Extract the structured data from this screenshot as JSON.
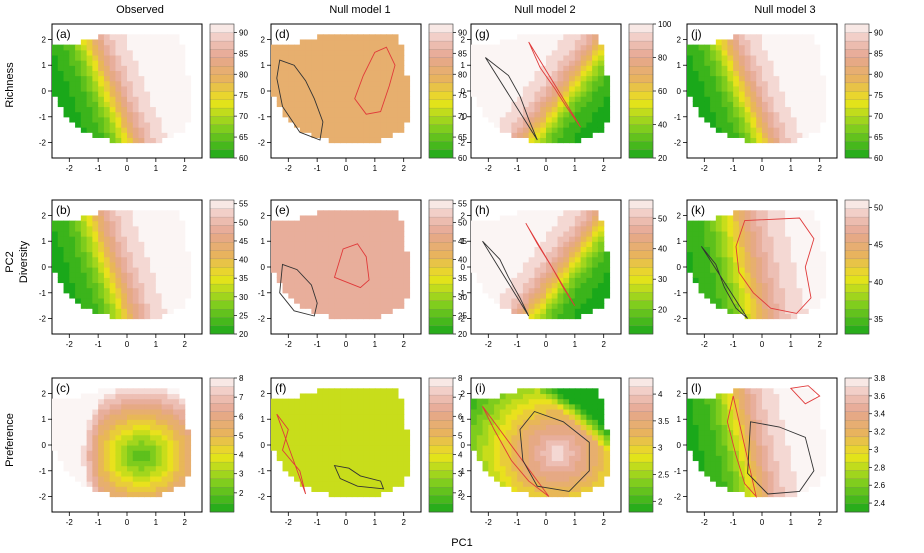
{
  "figure": {
    "column_titles": [
      "Observed",
      "Null model 1",
      "Null model 2",
      "Null model 3"
    ],
    "row_titles": [
      "Richness",
      "Diversity",
      "Preference"
    ],
    "xlabel": "PC1",
    "ylabel": "PC2"
  },
  "chart_data": [
    {
      "panel": "(a)",
      "type": "heatmap",
      "row": "Richness",
      "column": "Observed",
      "x_ticks": [
        -2,
        -1,
        0,
        1,
        2
      ],
      "y_ticks": [
        -2,
        -1,
        0,
        1,
        2
      ],
      "xlim": [
        -2.6,
        2.6
      ],
      "ylim": [
        -2.6,
        2.6
      ],
      "colorbar": {
        "min": 60,
        "max": 92,
        "ticks": [
          60,
          65,
          70,
          75,
          80,
          85,
          90
        ]
      },
      "surface": {
        "direction": 0.35,
        "low": 60,
        "high": 92,
        "steep": 2.6
      },
      "contours": []
    },
    {
      "panel": "(d)",
      "type": "heatmap",
      "row": "Richness",
      "column": "Null model 1",
      "x_ticks": [
        -2,
        -1,
        0,
        1,
        2
      ],
      "y_ticks": [
        -2,
        -1,
        0,
        1,
        2
      ],
      "xlim": [
        -2.6,
        2.6
      ],
      "ylim": [
        -2.6,
        2.6
      ],
      "colorbar": {
        "min": 60,
        "max": 92,
        "ticks": [
          60,
          65,
          70,
          75,
          80,
          85,
          90
        ]
      },
      "surface": {
        "uniform": 80
      },
      "contours": [
        {
          "color": "black",
          "points": [
            [
              -2.3,
              1.2
            ],
            [
              -1.8,
              1.0
            ],
            [
              -1.4,
              0.4
            ],
            [
              -1.1,
              -0.3
            ],
            [
              -0.8,
              -1.2
            ],
            [
              -0.9,
              -1.9
            ],
            [
              -1.6,
              -1.6
            ],
            [
              -2.2,
              -0.6
            ],
            [
              -2.4,
              0.5
            ]
          ]
        },
        {
          "color": "red",
          "points": [
            [
              0.3,
              -0.3
            ],
            [
              0.6,
              0.6
            ],
            [
              1.0,
              1.5
            ],
            [
              1.4,
              1.7
            ],
            [
              1.7,
              1.0
            ],
            [
              1.5,
              0.2
            ],
            [
              1.2,
              -0.8
            ],
            [
              0.7,
              -0.9
            ]
          ]
        }
      ]
    },
    {
      "panel": "(g)",
      "type": "heatmap",
      "row": "Richness",
      "column": "Null model 2",
      "x_ticks": [
        -2,
        -1,
        0,
        1,
        2
      ],
      "y_ticks": [
        -2,
        -1,
        0,
        1,
        2
      ],
      "xlim": [
        -2.6,
        2.6
      ],
      "ylim": [
        -2.6,
        2.6
      ],
      "colorbar": {
        "min": 20,
        "max": 100,
        "ticks": [
          20,
          40,
          60,
          80,
          100
        ]
      },
      "surface": {
        "direction": -0.6,
        "low": 20,
        "high": 100,
        "steep": 2.6
      },
      "contours": [
        {
          "color": "black",
          "points": [
            [
              -2.1,
              1.3
            ],
            [
              -1.3,
              0.6
            ],
            [
              -0.9,
              -0.2
            ],
            [
              -0.6,
              -1.1
            ],
            [
              -0.3,
              -1.9
            ]
          ]
        },
        {
          "color": "red",
          "points": [
            [
              -0.6,
              1.9
            ],
            [
              -0.2,
              0.9
            ],
            [
              0.3,
              0.1
            ],
            [
              0.7,
              -0.6
            ],
            [
              1.2,
              -1.4
            ]
          ]
        }
      ]
    },
    {
      "panel": "(j)",
      "type": "heatmap",
      "row": "Richness",
      "column": "Null model 3",
      "x_ticks": [
        -2,
        -1,
        0,
        1,
        2
      ],
      "y_ticks": [
        -2,
        -1,
        0,
        1,
        2
      ],
      "xlim": [
        -2.6,
        2.6
      ],
      "ylim": [
        -2.6,
        2.6
      ],
      "colorbar": {
        "min": 60,
        "max": 92,
        "ticks": [
          60,
          65,
          70,
          75,
          80,
          85,
          90
        ]
      },
      "surface": {
        "direction": 0.35,
        "low": 60,
        "high": 92,
        "steep": 2.6
      },
      "contours": []
    },
    {
      "panel": "(b)",
      "type": "heatmap",
      "row": "Diversity",
      "column": "Observed",
      "x_ticks": [
        -2,
        -1,
        0,
        1,
        2
      ],
      "y_ticks": [
        -2,
        -1,
        0,
        1,
        2
      ],
      "xlim": [
        -2.6,
        2.6
      ],
      "ylim": [
        -2.6,
        2.6
      ],
      "colorbar": {
        "min": 20,
        "max": 56,
        "ticks": [
          20,
          25,
          30,
          35,
          40,
          45,
          50,
          55
        ]
      },
      "surface": {
        "direction": 0.3,
        "low": 20,
        "high": 56,
        "steep": 2.4
      },
      "contours": []
    },
    {
      "panel": "(e)",
      "type": "heatmap",
      "row": "Diversity",
      "column": "Null model 1",
      "x_ticks": [
        -2,
        -1,
        0,
        1,
        2
      ],
      "y_ticks": [
        -2,
        -1,
        0,
        1,
        2
      ],
      "xlim": [
        -2.6,
        2.6
      ],
      "ylim": [
        -2.6,
        2.6
      ],
      "colorbar": {
        "min": 20,
        "max": 56,
        "ticks": [
          20,
          25,
          30,
          35,
          40,
          45,
          50,
          55
        ]
      },
      "surface": {
        "uniform": 47
      },
      "contours": [
        {
          "color": "black",
          "points": [
            [
              -2.2,
              0.1
            ],
            [
              -1.7,
              -0.1
            ],
            [
              -1.2,
              -0.7
            ],
            [
              -1.0,
              -1.4
            ],
            [
              -1.1,
              -1.9
            ],
            [
              -1.8,
              -1.7
            ],
            [
              -2.3,
              -1.0
            ]
          ]
        },
        {
          "color": "red",
          "points": [
            [
              -0.4,
              -0.4
            ],
            [
              -0.1,
              0.7
            ],
            [
              0.4,
              0.9
            ],
            [
              0.7,
              0.4
            ],
            [
              0.8,
              -0.5
            ],
            [
              0.5,
              -0.8
            ]
          ]
        }
      ]
    },
    {
      "panel": "(h)",
      "type": "heatmap",
      "row": "Diversity",
      "column": "Null model 2",
      "x_ticks": [
        -2,
        -1,
        0,
        1,
        2
      ],
      "y_ticks": [
        -2,
        -1,
        0,
        1,
        2
      ],
      "xlim": [
        -2.6,
        2.6
      ],
      "ylim": [
        -2.6,
        2.6
      ],
      "colorbar": {
        "min": 12,
        "max": 56,
        "ticks": [
          20,
          30,
          40,
          50
        ]
      },
      "surface": {
        "direction": -0.6,
        "low": 12,
        "high": 56,
        "steep": 2.6
      },
      "contours": [
        {
          "color": "black",
          "points": [
            [
              -2.2,
              1.0
            ],
            [
              -1.6,
              0.3
            ],
            [
              -1.3,
              -0.4
            ],
            [
              -0.9,
              -1.2
            ],
            [
              -0.6,
              -1.9
            ]
          ]
        },
        {
          "color": "red",
          "points": [
            [
              -0.7,
              1.7
            ],
            [
              -0.3,
              0.9
            ],
            [
              0.2,
              0.0
            ],
            [
              0.6,
              -0.8
            ],
            [
              1.0,
              -1.5
            ]
          ]
        }
      ]
    },
    {
      "panel": "(k)",
      "type": "heatmap",
      "row": "Diversity",
      "column": "Null model 3",
      "x_ticks": [
        -2,
        -1,
        0,
        1,
        2
      ],
      "y_ticks": [
        -2,
        -1,
        0,
        1,
        2
      ],
      "xlim": [
        -2.6,
        2.6
      ],
      "ylim": [
        -2.6,
        2.6
      ],
      "colorbar": {
        "min": 33,
        "max": 51,
        "ticks": [
          35,
          40,
          45,
          50
        ]
      },
      "surface": {
        "direction": 0.2,
        "low": 33,
        "high": 51,
        "steep": 1.9
      },
      "contours": [
        {
          "color": "black",
          "points": [
            [
              -2.1,
              0.8
            ],
            [
              -1.6,
              0.1
            ],
            [
              -1.3,
              -0.8
            ],
            [
              -0.9,
              -1.6
            ],
            [
              -0.5,
              -2.0
            ]
          ]
        },
        {
          "color": "red",
          "points": [
            [
              -0.6,
              1.8
            ],
            [
              -0.9,
              0.8
            ],
            [
              -0.8,
              -0.2
            ],
            [
              -0.3,
              -1.0
            ],
            [
              0.3,
              -1.6
            ],
            [
              1.2,
              -1.8
            ],
            [
              1.7,
              -1.2
            ],
            [
              1.5,
              0.0
            ],
            [
              1.8,
              1.1
            ],
            [
              1.3,
              1.9
            ]
          ]
        }
      ]
    },
    {
      "panel": "(c)",
      "type": "heatmap",
      "row": "Preference",
      "column": "Observed",
      "x_ticks": [
        -2,
        -1,
        0,
        1,
        2
      ],
      "y_ticks": [
        -2,
        -1,
        0,
        1,
        2
      ],
      "xlim": [
        -2.6,
        2.6
      ],
      "ylim": [
        -2.6,
        2.6
      ],
      "colorbar": {
        "min": 1,
        "max": 8,
        "ticks": [
          2,
          3,
          4,
          5,
          6,
          7,
          8
        ]
      },
      "surface": {
        "direction": -0.4,
        "low": 1,
        "high": 8,
        "steep": 2.2,
        "valley": true
      },
      "contours": []
    },
    {
      "panel": "(f)",
      "type": "heatmap",
      "row": "Preference",
      "column": "Null model 1",
      "x_ticks": [
        -2,
        -1,
        0,
        1,
        2
      ],
      "y_ticks": [
        -2,
        -1,
        0,
        1,
        2
      ],
      "xlim": [
        -2.6,
        2.6
      ],
      "ylim": [
        -2.6,
        2.6
      ],
      "colorbar": {
        "min": 1,
        "max": 8,
        "ticks": [
          2,
          3,
          4,
          5,
          6,
          7,
          8
        ]
      },
      "surface": {
        "uniform": 3.3
      },
      "contours": [
        {
          "color": "red",
          "points": [
            [
              -2.4,
              1.2
            ],
            [
              -2.0,
              0.6
            ],
            [
              -2.2,
              -0.2
            ],
            [
              -1.6,
              -1.0
            ],
            [
              -1.4,
              -1.9
            ]
          ]
        },
        {
          "color": "black",
          "points": [
            [
              -0.4,
              -0.8
            ],
            [
              0.1,
              -0.9
            ],
            [
              0.5,
              -1.2
            ],
            [
              1.2,
              -1.4
            ],
            [
              1.3,
              -1.7
            ],
            [
              0.4,
              -1.6
            ],
            [
              -0.2,
              -1.3
            ]
          ]
        }
      ]
    },
    {
      "panel": "(i)",
      "type": "heatmap",
      "row": "Preference",
      "column": "Null model 2",
      "x_ticks": [
        -2,
        -1,
        0,
        1,
        2
      ],
      "y_ticks": [
        -2,
        -1,
        0,
        1,
        2
      ],
      "xlim": [
        -2.6,
        2.6
      ],
      "ylim": [
        -2.6,
        2.6
      ],
      "colorbar": {
        "min": 1.8,
        "max": 4.3,
        "ticks": [
          2.0,
          2.5,
          3.0,
          3.5,
          4.0
        ]
      },
      "surface": {
        "direction": -0.5,
        "low": 1.8,
        "high": 4.3,
        "steep": 2.0,
        "bump": true
      },
      "contours": [
        {
          "color": "red",
          "points": [
            [
              -2.2,
              1.5
            ],
            [
              -1.8,
              0.6
            ],
            [
              -1.2,
              -0.6
            ],
            [
              -0.6,
              -1.4
            ],
            [
              0.1,
              -2.0
            ]
          ]
        },
        {
          "color": "black",
          "points": [
            [
              -0.4,
              1.3
            ],
            [
              0.6,
              0.9
            ],
            [
              1.5,
              0.1
            ],
            [
              1.5,
              -1.0
            ],
            [
              0.8,
              -1.8
            ],
            [
              -0.3,
              -1.6
            ],
            [
              -0.8,
              -0.6
            ],
            [
              -0.9,
              0.6
            ]
          ]
        }
      ]
    },
    {
      "panel": "(l)",
      "type": "heatmap",
      "row": "Preference",
      "column": "Null model 3",
      "x_ticks": [
        -2,
        -1,
        0,
        1,
        2
      ],
      "y_ticks": [
        -2,
        -1,
        0,
        1,
        2
      ],
      "xlim": [
        -2.6,
        2.6
      ],
      "ylim": [
        -2.6,
        2.6
      ],
      "colorbar": {
        "min": 2.3,
        "max": 3.8,
        "ticks": [
          2.4,
          2.6,
          2.8,
          3.0,
          3.2,
          3.4,
          3.6,
          3.8
        ]
      },
      "surface": {
        "direction": 0.2,
        "low": 2.3,
        "high": 3.8,
        "steep": 2.2
      },
      "contours": [
        {
          "color": "red",
          "points": [
            [
              -1.0,
              1.9
            ],
            [
              -1.2,
              0.9
            ],
            [
              -0.9,
              -0.4
            ],
            [
              -0.6,
              -1.5
            ],
            [
              -0.2,
              -2.0
            ]
          ]
        },
        {
          "color": "black",
          "points": [
            [
              -0.4,
              0.9
            ],
            [
              0.6,
              0.7
            ],
            [
              1.5,
              0.3
            ],
            [
              1.8,
              -1.0
            ],
            [
              1.3,
              -1.8
            ],
            [
              0.2,
              -1.9
            ],
            [
              -0.5,
              -1.1
            ]
          ]
        },
        {
          "color": "red",
          "points": [
            [
              1.0,
              2.2
            ],
            [
              1.5,
              1.6
            ],
            [
              2.0,
              1.9
            ],
            [
              1.6,
              2.3
            ]
          ]
        }
      ]
    }
  ]
}
